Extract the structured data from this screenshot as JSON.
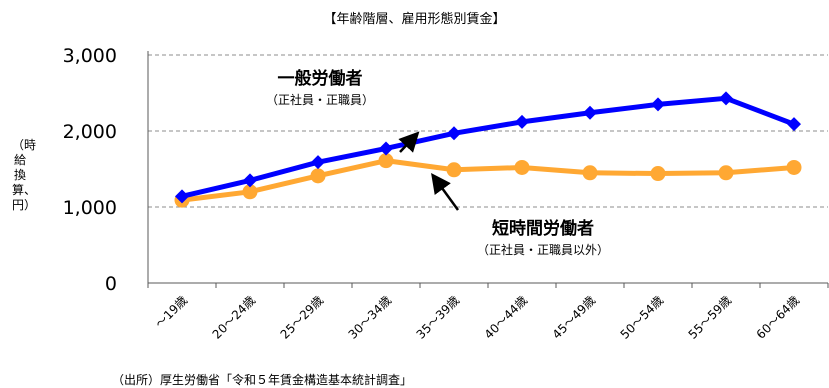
{
  "chart_data": {
    "type": "line",
    "title": "【年齢階層、雇用形態別賃金】",
    "ylabel": "（時給換算、円）",
    "ylim": [
      0,
      3000
    ],
    "yticks": [
      "0",
      "1,000",
      "2,000",
      "3,000"
    ],
    "grid": true,
    "categories": [
      "～19歳",
      "20～24歳",
      "25～29歳",
      "30～34歳",
      "35～39歳",
      "40～44歳",
      "45～49歳",
      "50～54歳",
      "55～59歳",
      "60～64歳"
    ],
    "series": [
      {
        "name": "一般労働者",
        "subtitle": "（正社員・正職員）",
        "color": "#0000ff",
        "marker": "diamond",
        "values": [
          1140,
          1350,
          1590,
          1770,
          1970,
          2120,
          2240,
          2350,
          2430,
          2090
        ]
      },
      {
        "name": "短時間労働者",
        "subtitle": "（正社員・正職員以外）",
        "color": "#ffa833",
        "marker": "circle",
        "values": [
          1090,
          1200,
          1410,
          1610,
          1490,
          1520,
          1450,
          1440,
          1450,
          1520
        ]
      }
    ],
    "source": "（出所）厚生労働省「令和５年賃金構造基本統計調査」"
  }
}
